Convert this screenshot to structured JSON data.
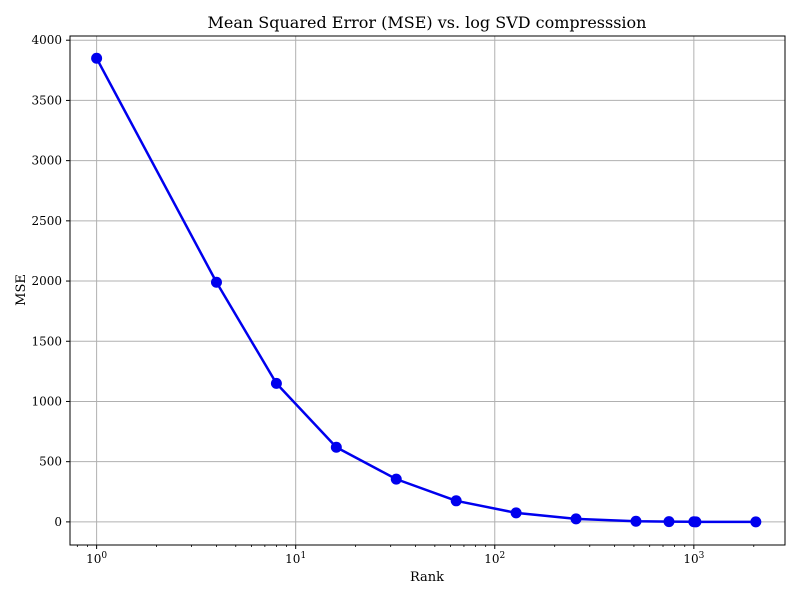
{
  "chart_data": {
    "type": "line",
    "title": "Mean Squared Error (MSE) vs. log SVD compresssion",
    "xlabel": "Rank",
    "ylabel": "MSE",
    "x_scale": "log",
    "xlim": [
      0.735,
      2870
    ],
    "ylim": [
      -192,
      4035
    ],
    "grid": true,
    "x_ticks": [
      {
        "value": 1,
        "base": "10",
        "exp": "0"
      },
      {
        "value": 10,
        "base": "10",
        "exp": "1"
      },
      {
        "value": 100,
        "base": "10",
        "exp": "2"
      },
      {
        "value": 1000,
        "base": "10",
        "exp": "3"
      }
    ],
    "y_ticks": [
      {
        "value": 0,
        "label": "0"
      },
      {
        "value": 500,
        "label": "500"
      },
      {
        "value": 1000,
        "label": "1000"
      },
      {
        "value": 1500,
        "label": "1500"
      },
      {
        "value": 2000,
        "label": "2000"
      },
      {
        "value": 2500,
        "label": "2500"
      },
      {
        "value": 3000,
        "label": "3000"
      },
      {
        "value": 3500,
        "label": "3500"
      },
      {
        "value": 4000,
        "label": "4000"
      }
    ],
    "series": [
      {
        "color": "#0000ee",
        "x": [
          1,
          4,
          8,
          16,
          32,
          64,
          128,
          256,
          512,
          750,
          1000,
          1024,
          2048
        ],
        "y": [
          3850,
          1990,
          1150,
          620,
          355,
          175,
          75,
          25,
          5,
          2,
          1,
          0,
          0
        ]
      }
    ]
  }
}
